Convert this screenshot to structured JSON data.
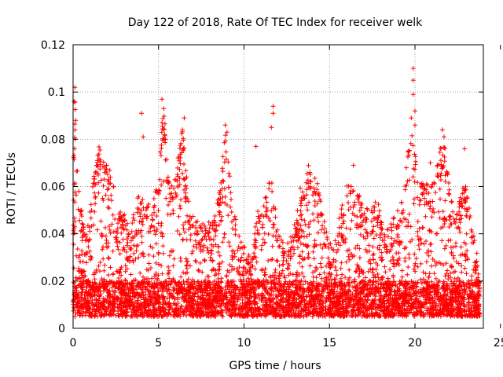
{
  "chart_data": {
    "type": "scatter",
    "title": "Day 122 of 2018, Rate Of TEC Index for receiver welk",
    "xlabel": "GPS time / hours",
    "ylabel": "ROTI / TECUs",
    "xlim": [
      0,
      24
    ],
    "ylim": [
      0,
      0.12
    ],
    "xticks": [
      0,
      5,
      10,
      15,
      20,
      25
    ],
    "xtick_labels": [
      "0",
      "5",
      "10",
      "15",
      "20",
      "25"
    ],
    "yticks": [
      0,
      0.02,
      0.04,
      0.06,
      0.08,
      0.1,
      0.12
    ],
    "ytick_labels": [
      "0",
      "0.02",
      "0.04",
      "0.06",
      "0.08",
      "0.1",
      "0.12"
    ],
    "grid": true,
    "marker": "plus",
    "marker_color": "#ff0000",
    "data_x_range": [
      0,
      23.8
    ],
    "baseline_range": [
      0.005,
      0.02
    ],
    "envelope": [
      {
        "x": 0.0,
        "y": 0.075
      },
      {
        "x": 0.1,
        "y": 0.1
      },
      {
        "x": 0.3,
        "y": 0.06
      },
      {
        "x": 0.7,
        "y": 0.04
      },
      {
        "x": 1.0,
        "y": 0.05
      },
      {
        "x": 1.3,
        "y": 0.07
      },
      {
        "x": 1.6,
        "y": 0.08
      },
      {
        "x": 2.0,
        "y": 0.07
      },
      {
        "x": 2.3,
        "y": 0.065
      },
      {
        "x": 2.6,
        "y": 0.05
      },
      {
        "x": 3.0,
        "y": 0.05
      },
      {
        "x": 3.4,
        "y": 0.045
      },
      {
        "x": 3.9,
        "y": 0.06
      },
      {
        "x": 4.2,
        "y": 0.05
      },
      {
        "x": 4.6,
        "y": 0.055
      },
      {
        "x": 5.0,
        "y": 0.065
      },
      {
        "x": 5.3,
        "y": 0.095
      },
      {
        "x": 5.6,
        "y": 0.065
      },
      {
        "x": 6.0,
        "y": 0.065
      },
      {
        "x": 6.4,
        "y": 0.085
      },
      {
        "x": 6.8,
        "y": 0.05
      },
      {
        "x": 7.3,
        "y": 0.045
      },
      {
        "x": 7.8,
        "y": 0.045
      },
      {
        "x": 8.2,
        "y": 0.045
      },
      {
        "x": 8.6,
        "y": 0.06
      },
      {
        "x": 8.9,
        "y": 0.085
      },
      {
        "x": 9.3,
        "y": 0.055
      },
      {
        "x": 9.7,
        "y": 0.04
      },
      {
        "x": 10.0,
        "y": 0.035
      },
      {
        "x": 10.4,
        "y": 0.03
      },
      {
        "x": 10.8,
        "y": 0.05
      },
      {
        "x": 11.2,
        "y": 0.055
      },
      {
        "x": 11.6,
        "y": 0.065
      },
      {
        "x": 12.0,
        "y": 0.04
      },
      {
        "x": 12.5,
        "y": 0.035
      },
      {
        "x": 13.0,
        "y": 0.045
      },
      {
        "x": 13.4,
        "y": 0.065
      },
      {
        "x": 13.8,
        "y": 0.07
      },
      {
        "x": 14.2,
        "y": 0.065
      },
      {
        "x": 14.6,
        "y": 0.05
      },
      {
        "x": 15.0,
        "y": 0.035
      },
      {
        "x": 15.5,
        "y": 0.045
      },
      {
        "x": 16.0,
        "y": 0.06
      },
      {
        "x": 16.4,
        "y": 0.065
      },
      {
        "x": 16.8,
        "y": 0.055
      },
      {
        "x": 17.3,
        "y": 0.05
      },
      {
        "x": 17.8,
        "y": 0.055
      },
      {
        "x": 18.2,
        "y": 0.04
      },
      {
        "x": 18.6,
        "y": 0.045
      },
      {
        "x": 19.0,
        "y": 0.05
      },
      {
        "x": 19.4,
        "y": 0.06
      },
      {
        "x": 19.8,
        "y": 0.095
      },
      {
        "x": 20.2,
        "y": 0.06
      },
      {
        "x": 20.6,
        "y": 0.065
      },
      {
        "x": 21.0,
        "y": 0.06
      },
      {
        "x": 21.4,
        "y": 0.075
      },
      {
        "x": 21.7,
        "y": 0.08
      },
      {
        "x": 22.1,
        "y": 0.055
      },
      {
        "x": 22.5,
        "y": 0.05
      },
      {
        "x": 22.9,
        "y": 0.065
      },
      {
        "x": 23.3,
        "y": 0.045
      },
      {
        "x": 23.8,
        "y": 0.025
      }
    ],
    "outliers": [
      {
        "x": 0.1,
        "y": 0.102
      },
      {
        "x": 0.05,
        "y": 0.096
      },
      {
        "x": 0.15,
        "y": 0.088
      },
      {
        "x": 0.12,
        "y": 0.08
      },
      {
        "x": 4.0,
        "y": 0.091
      },
      {
        "x": 4.1,
        "y": 0.081
      },
      {
        "x": 5.2,
        "y": 0.097
      },
      {
        "x": 5.3,
        "y": 0.093
      },
      {
        "x": 5.2,
        "y": 0.087
      },
      {
        "x": 6.5,
        "y": 0.089
      },
      {
        "x": 6.4,
        "y": 0.084
      },
      {
        "x": 8.9,
        "y": 0.086
      },
      {
        "x": 9.0,
        "y": 0.083
      },
      {
        "x": 10.7,
        "y": 0.077
      },
      {
        "x": 11.7,
        "y": 0.094
      },
      {
        "x": 11.7,
        "y": 0.091
      },
      {
        "x": 11.6,
        "y": 0.085
      },
      {
        "x": 19.9,
        "y": 0.11
      },
      {
        "x": 19.9,
        "y": 0.105
      },
      {
        "x": 19.9,
        "y": 0.099
      },
      {
        "x": 20.0,
        "y": 0.092
      },
      {
        "x": 20.0,
        "y": 0.086
      },
      {
        "x": 21.6,
        "y": 0.084
      },
      {
        "x": 21.7,
        "y": 0.081
      },
      {
        "x": 20.9,
        "y": 0.07
      },
      {
        "x": 22.9,
        "y": 0.076
      },
      {
        "x": 12.0,
        "y": 0.039
      },
      {
        "x": 16.4,
        "y": 0.069
      }
    ]
  }
}
